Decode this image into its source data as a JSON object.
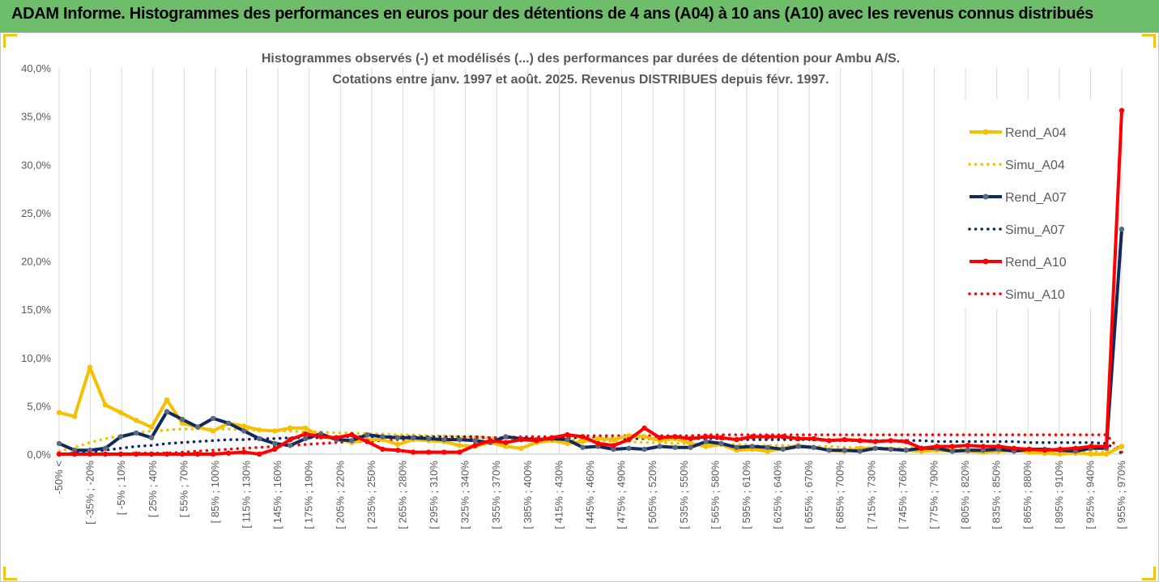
{
  "banner": {
    "title": "ADAM Informe. Histogrammes des performances en euros pour des détentions de 4 ans (A04) à 10 ans (A10) avec les revenus connus distribués"
  },
  "colors": {
    "banner_bg": "#6dbd6b",
    "A04": "#f5c000",
    "A07": "#12295e",
    "A10": "#ff0000",
    "marker_A07": "#5a6a80",
    "grid": "#d9d9d9",
    "text": "#595959"
  },
  "chart_data": {
    "type": "line",
    "title": [
      "Histogrammes observés (-) et modélisés (...) des performances par durées de détention pour Ambu A/S.",
      "Cotations entre janv. 1997 et août. 2025. Revenus DISTRIBUES depuis févr. 1997."
    ],
    "xlabel": "",
    "ylabel": "",
    "ylim": [
      0,
      40
    ],
    "y_ticks": [
      "0,0%",
      "5,0%",
      "10,0%",
      "15,0%",
      "20,0%",
      "25,0%",
      "30,0%",
      "35,0%",
      "40,0%"
    ],
    "grid": "vertical",
    "legend_position": "right",
    "x_tick_labels": [
      "-50% <",
      "[ -35% ; -20%",
      "[ -5% ; 10%",
      "[ 25% ; 40%",
      "[ 55% ; 70%",
      "[ 85% ; 100%",
      "[ 115% ; 130%",
      "[ 145% ; 160%",
      "[ 175% ; 190%",
      "[ 205% ; 220%",
      "[ 235% ; 250%",
      "[ 265% ; 280%",
      "[ 295% ; 310%",
      "[ 325% ; 340%",
      "[ 355% ; 370%",
      "[ 385% ; 400%",
      "[ 415% ; 430%",
      "[ 445% ; 460%",
      "[ 475% ; 490%",
      "[ 505% ; 520%",
      "[ 535% ; 550%",
      "[ 565% ; 580%",
      "[ 595% ; 610%",
      "[ 625% ; 640%",
      "[ 655% ; 670%",
      "[ 685% ; 700%",
      "[ 715% ; 730%",
      "[ 745% ; 760%",
      "[ 775% ; 790%",
      "[ 805% ; 820%",
      "[ 835% ; 850%",
      "[ 865% ; 880%",
      "[ 895% ; 910%",
      "[ 925% ; 940%",
      "[ 955% ; 970%"
    ],
    "series": [
      {
        "name": "Rend_A04",
        "style": "solid",
        "color": "#f5c000",
        "values": [
          4.3,
          3.9,
          9.0,
          5.1,
          4.3,
          3.5,
          2.8,
          5.6,
          3.2,
          2.8,
          2.4,
          3.2,
          2.9,
          2.5,
          2.4,
          2.7,
          2.7,
          1.8,
          1.6,
          1.2,
          1.5,
          1.5,
          1.0,
          1.5,
          1.4,
          1.3,
          0.9,
          0.8,
          1.2,
          0.8,
          0.6,
          1.2,
          1.4,
          1.1,
          1.3,
          1.6,
          1.5,
          1.9,
          1.8,
          1.4,
          1.6,
          1.1,
          0.8,
          1.0,
          0.4,
          0.5,
          0.3,
          0.6,
          0.9,
          0.7,
          0.4,
          0.3,
          0.6,
          0.6,
          0.5,
          0.4,
          0.3,
          0.4,
          0.3,
          0.3,
          0.2,
          0.3,
          0.4,
          0.2,
          0.1,
          0.0,
          0.1,
          0.0,
          0.0,
          0.8
        ]
      },
      {
        "name": "Simu_A04",
        "style": "dotted",
        "color": "#f5c000",
        "values": [
          0.3,
          0.7,
          1.2,
          1.6,
          1.9,
          2.2,
          2.4,
          2.5,
          2.6,
          2.6,
          2.6,
          2.6,
          2.5,
          2.5,
          2.4,
          2.4,
          2.3,
          2.3,
          2.2,
          2.2,
          2.1,
          2.1,
          2.0,
          2.0,
          1.9,
          1.9,
          1.8,
          1.8,
          1.7,
          1.7,
          1.6,
          1.6,
          1.5,
          1.5,
          1.4,
          1.4,
          1.3,
          1.3,
          1.2,
          1.2,
          1.1,
          1.1,
          1.0,
          1.0,
          1.0,
          0.9,
          0.9,
          0.9,
          0.8,
          0.8,
          0.8,
          0.7,
          0.7,
          0.7,
          0.6,
          0.6,
          0.6,
          0.5,
          0.5,
          0.5,
          0.4,
          0.4,
          0.4,
          0.4,
          0.3,
          0.3,
          0.3,
          0.3,
          0.2,
          0.9
        ]
      },
      {
        "name": "Rend_A07",
        "style": "solid",
        "color": "#12295e",
        "values": [
          1.1,
          0.4,
          0.4,
          0.6,
          1.8,
          2.2,
          1.7,
          4.4,
          3.6,
          2.8,
          3.7,
          3.2,
          2.4,
          1.6,
          1.1,
          0.9,
          1.6,
          2.1,
          1.5,
          1.4,
          2.0,
          1.8,
          1.7,
          1.7,
          1.6,
          1.5,
          1.5,
          1.4,
          1.2,
          1.8,
          1.6,
          1.5,
          1.6,
          1.5,
          0.7,
          0.8,
          0.5,
          0.6,
          0.5,
          0.8,
          0.7,
          0.7,
          1.3,
          1.1,
          0.7,
          0.8,
          0.7,
          0.5,
          0.8,
          0.7,
          0.4,
          0.4,
          0.3,
          0.6,
          0.5,
          0.4,
          0.6,
          0.6,
          0.3,
          0.4,
          0.4,
          0.5,
          0.3,
          0.5,
          0.5,
          0.4,
          0.3,
          0.6,
          0.6,
          23.3
        ]
      },
      {
        "name": "Simu_A07",
        "style": "dotted",
        "color": "#12295e",
        "values": [
          0.0,
          0.1,
          0.2,
          0.4,
          0.6,
          0.8,
          0.9,
          1.1,
          1.2,
          1.3,
          1.4,
          1.5,
          1.5,
          1.6,
          1.6,
          1.7,
          1.7,
          1.7,
          1.8,
          1.8,
          1.8,
          1.8,
          1.8,
          1.8,
          1.8,
          1.8,
          1.8,
          1.8,
          1.7,
          1.7,
          1.7,
          1.7,
          1.7,
          1.7,
          1.7,
          1.7,
          1.6,
          1.6,
          1.6,
          1.6,
          1.6,
          1.6,
          1.6,
          1.6,
          1.5,
          1.5,
          1.5,
          1.5,
          1.5,
          1.5,
          1.4,
          1.4,
          1.4,
          1.4,
          1.4,
          1.4,
          1.4,
          1.3,
          1.3,
          1.3,
          1.3,
          1.3,
          1.3,
          1.2,
          1.2,
          1.2,
          1.2,
          1.2,
          1.1,
          0.1
        ]
      },
      {
        "name": "Rend_A10",
        "style": "solid",
        "color": "#ff0000",
        "values": [
          0.0,
          0.0,
          0.0,
          0.0,
          0.0,
          0.0,
          0.0,
          0.0,
          0.0,
          0.0,
          0.0,
          0.1,
          0.2,
          0.0,
          0.5,
          1.5,
          2.1,
          1.8,
          1.7,
          2.0,
          1.3,
          0.5,
          0.4,
          0.2,
          0.2,
          0.2,
          0.2,
          0.9,
          1.4,
          1.2,
          1.5,
          1.4,
          1.7,
          2.0,
          1.8,
          1.1,
          0.9,
          1.5,
          2.7,
          1.7,
          1.8,
          1.6,
          1.8,
          1.7,
          1.5,
          1.8,
          1.8,
          1.8,
          1.6,
          1.6,
          1.4,
          1.5,
          1.4,
          1.3,
          1.4,
          1.3,
          0.6,
          0.8,
          0.8,
          0.9,
          0.8,
          0.8,
          0.6,
          0.5,
          0.4,
          0.5,
          0.6,
          0.8,
          0.8,
          35.6
        ]
      },
      {
        "name": "Simu_A10",
        "style": "dotted",
        "color": "#ff0000",
        "values": [
          0.0,
          0.0,
          0.0,
          0.0,
          0.0,
          0.1,
          0.1,
          0.1,
          0.2,
          0.3,
          0.4,
          0.5,
          0.6,
          0.7,
          0.8,
          0.9,
          1.0,
          1.1,
          1.2,
          1.3,
          1.3,
          1.4,
          1.5,
          1.5,
          1.6,
          1.6,
          1.6,
          1.7,
          1.7,
          1.7,
          1.8,
          1.8,
          1.8,
          1.8,
          1.9,
          1.9,
          1.9,
          1.9,
          1.9,
          1.9,
          1.9,
          1.9,
          2.0,
          2.0,
          2.0,
          2.0,
          2.0,
          2.0,
          2.0,
          2.0,
          2.0,
          2.0,
          2.0,
          2.0,
          2.0,
          2.0,
          2.0,
          2.0,
          2.0,
          2.0,
          2.0,
          2.0,
          2.0,
          2.0,
          2.0,
          2.0,
          2.0,
          2.0,
          2.0,
          0.2
        ]
      }
    ]
  }
}
